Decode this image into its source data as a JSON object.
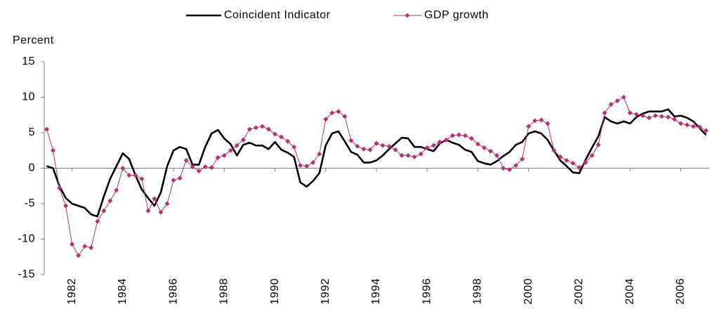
{
  "chart_data": {
    "type": "line",
    "y_label": "Percent",
    "categories": [
      null,
      null,
      null,
      null,
      "1982",
      null,
      null,
      null,
      null,
      null,
      null,
      null,
      "1984",
      null,
      null,
      null,
      null,
      null,
      null,
      null,
      "1986",
      null,
      null,
      null,
      null,
      null,
      null,
      null,
      "1988",
      null,
      null,
      null,
      null,
      null,
      null,
      null,
      "1990",
      null,
      null,
      null,
      null,
      null,
      null,
      null,
      "1992",
      null,
      null,
      null,
      null,
      null,
      null,
      null,
      "1994",
      null,
      null,
      null,
      null,
      null,
      null,
      null,
      "1996",
      null,
      null,
      null,
      null,
      null,
      null,
      null,
      "1998",
      null,
      null,
      null,
      null,
      null,
      null,
      null,
      "2000",
      null,
      null,
      null,
      null,
      null,
      null,
      null,
      "2002",
      null,
      null,
      null,
      null,
      null,
      null,
      null,
      "2004",
      null,
      null,
      null,
      null,
      null,
      null,
      null,
      "2006",
      null,
      null,
      null,
      null
    ],
    "series": [
      {
        "name": "Coincident Indicator",
        "color": "#000000",
        "marker": "none",
        "values": [
          0.3,
          0,
          -2.5,
          -4.2,
          -5,
          -5.3,
          -5.6,
          -6.5,
          -6.8,
          -4,
          -1.5,
          0.3,
          2.1,
          1.3,
          -1,
          -3,
          -4.2,
          -5.3,
          -3.4,
          0.3,
          2.5,
          3,
          2.7,
          0.5,
          0.5,
          3,
          4.9,
          5.4,
          4.2,
          3.4,
          1.8,
          3.3,
          3.6,
          3.2,
          3.2,
          2.7,
          3.7,
          2.6,
          2.2,
          1.6,
          -2,
          -2.6,
          -1.8,
          -0.7,
          3.2,
          4.9,
          5.2,
          3.8,
          2.3,
          1.9,
          0.8,
          0.8,
          1.1,
          1.8,
          2.7,
          3.5,
          4.3,
          4.2,
          3,
          3,
          2.7,
          2.4,
          3.5,
          4,
          3.6,
          3.3,
          2.6,
          2.3,
          1,
          0.7,
          0.5,
          1,
          1.7,
          2.3,
          3.3,
          3.7,
          4.9,
          5.2,
          4.9,
          4,
          2.5,
          1.1,
          0.3,
          -0.6,
          -0.7,
          1.2,
          2.9,
          4.5,
          7.2,
          6.6,
          6.3,
          6.6,
          6.3,
          7.2,
          7.7,
          8,
          8,
          8,
          8.3,
          7.3,
          7.4,
          7.1,
          6.6,
          5.6,
          4.7
        ]
      },
      {
        "name": "GDP growth",
        "color": "#b3336f",
        "marker": "diamond",
        "values": [
          5.5,
          2.5,
          -2.8,
          -5.3,
          -10.7,
          -12.3,
          -11,
          -11.2,
          -7.5,
          -6,
          -4.6,
          -3.1,
          0,
          -1,
          -1,
          -1.5,
          -6,
          -4.3,
          -6.2,
          -5,
          -1.7,
          -1.4,
          1.1,
          0.2,
          -0.4,
          0.2,
          0.1,
          1.5,
          1.8,
          2.5,
          3.2,
          4,
          5.5,
          5.7,
          5.9,
          5.5,
          4.8,
          4.4,
          3.8,
          3.0,
          0.4,
          0.3,
          0.8,
          2,
          6.9,
          7.8,
          8,
          7.3,
          3.9,
          3.1,
          2.7,
          2.6,
          3.5,
          3.2,
          3.1,
          2.6,
          1.8,
          1.8,
          1.6,
          2,
          2.9,
          3.2,
          3.7,
          4,
          4.6,
          4.7,
          4.6,
          4.2,
          3.4,
          2.9,
          2.4,
          1.8,
          0,
          -0.2,
          0.4,
          1.3,
          5.9,
          6.7,
          6.8,
          6.3,
          2.5,
          1.6,
          1.1,
          0.7,
          0.1,
          0.8,
          1.8,
          3.3,
          7.8,
          9,
          9.5,
          10,
          7.8,
          7.6,
          7.4,
          7.1,
          7.4,
          7.3,
          7.2,
          6.9,
          6.3,
          6.1,
          5.9,
          5.8,
          5.3
        ]
      }
    ],
    "ylim": [
      -15,
      15
    ],
    "yticks": [
      15,
      10,
      5,
      0,
      -5,
      -10,
      -15
    ],
    "legend": "top",
    "grid": false
  }
}
